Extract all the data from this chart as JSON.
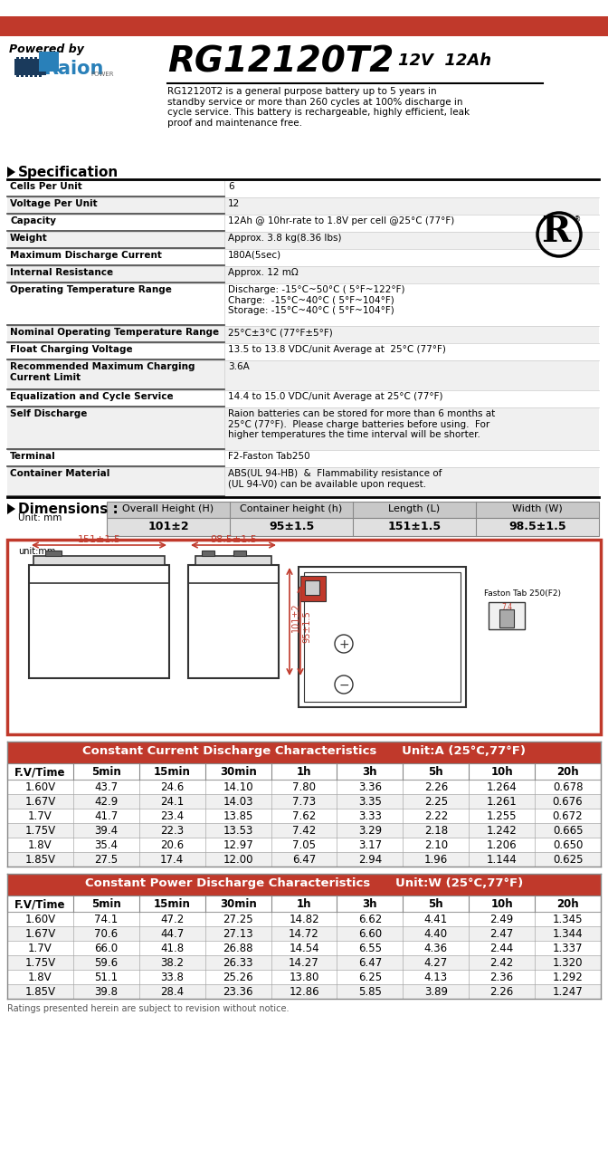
{
  "title_model": "RG12120T2",
  "title_voltage": "12V  12Ah",
  "powered_by": "Powered by",
  "description": "RG12120T2 is a general purpose battery up to 5 years in\nstandby service or more than 260 cycles at 100% discharge in\ncycle service. This battery is rechargeable, highly efficient, leak\nproof and maintenance free.",
  "top_bar_color": "#c0392b",
  "raion_blue": "#2980b9",
  "spec_rows": [
    [
      "Cells Per Unit",
      "6"
    ],
    [
      "Voltage Per Unit",
      "12"
    ],
    [
      "Capacity",
      "12Ah @ 10hr-rate to 1.8V per cell @25°C (77°F)"
    ],
    [
      "Weight",
      "Approx. 3.8 kg(8.36 lbs)"
    ],
    [
      "Maximum Discharge Current",
      "180A(5sec)"
    ],
    [
      "Internal Resistance",
      "Approx. 12 mΩ"
    ],
    [
      "Operating Temperature Range",
      "Discharge: -15°C~50°C ( 5°F~122°F)\nCharge:  -15°C~40°C ( 5°F~104°F)\nStorage: -15°C~40°C ( 5°F~104°F)"
    ],
    [
      "Nominal Operating Temperature Range",
      "25°C±3°C (77°F±5°F)"
    ],
    [
      "Float Charging Voltage",
      "13.5 to 13.8 VDC/unit Average at  25°C (77°F)"
    ],
    [
      "Recommended Maximum Charging\nCurrent Limit",
      "3.6A"
    ],
    [
      "Equalization and Cycle Service",
      "14.4 to 15.0 VDC/unit Average at 25°C (77°F)"
    ],
    [
      "Self Discharge",
      "Raion batteries can be stored for more than 6 months at\n25°C (77°F).  Please charge batteries before using.  For\nhigher temperatures the time interval will be shorter."
    ],
    [
      "Terminal",
      "F2-Faston Tab250"
    ],
    [
      "Container Material",
      "ABS(UL 94-HB)  &  Flammability resistance of\n(UL 94-V0) can be available upon request."
    ]
  ],
  "dim_headers": [
    "Overall Height (H)",
    "Container height (h)",
    "Length (L)",
    "Width (W)"
  ],
  "dim_values": [
    "101±2",
    "95±1.5",
    "151±1.5",
    "98.5±1.5"
  ],
  "dim_header_bg": "#c8c8c8",
  "dim_val_bg": "#e0e0e0",
  "cc_table_title": "Constant Current Discharge Characteristics",
  "cc_table_unit": "Unit:A (25°C,77°F)",
  "cp_table_title": "Constant Power Discharge Characteristics",
  "cp_table_unit": "Unit:W (25°C,77°F)",
  "table_header_bg": "#c0392b",
  "table_header_color": "#ffffff",
  "table_col_headers": [
    "F.V/Time",
    "5min",
    "15min",
    "30min",
    "1h",
    "3h",
    "5h",
    "10h",
    "20h"
  ],
  "cc_data": [
    [
      "1.60V",
      "43.7",
      "24.6",
      "14.10",
      "7.80",
      "3.36",
      "2.26",
      "1.264",
      "0.678"
    ],
    [
      "1.67V",
      "42.9",
      "24.1",
      "14.03",
      "7.73",
      "3.35",
      "2.25",
      "1.261",
      "0.676"
    ],
    [
      "1.7V",
      "41.7",
      "23.4",
      "13.85",
      "7.62",
      "3.33",
      "2.22",
      "1.255",
      "0.672"
    ],
    [
      "1.75V",
      "39.4",
      "22.3",
      "13.53",
      "7.42",
      "3.29",
      "2.18",
      "1.242",
      "0.665"
    ],
    [
      "1.8V",
      "35.4",
      "20.6",
      "12.97",
      "7.05",
      "3.17",
      "2.10",
      "1.206",
      "0.650"
    ],
    [
      "1.85V",
      "27.5",
      "17.4",
      "12.00",
      "6.47",
      "2.94",
      "1.96",
      "1.144",
      "0.625"
    ]
  ],
  "cp_data": [
    [
      "1.60V",
      "74.1",
      "47.2",
      "27.25",
      "14.82",
      "6.62",
      "4.41",
      "2.49",
      "1.345"
    ],
    [
      "1.67V",
      "70.6",
      "44.7",
      "27.13",
      "14.72",
      "6.60",
      "4.40",
      "2.47",
      "1.344"
    ],
    [
      "1.7V",
      "66.0",
      "41.8",
      "26.88",
      "14.54",
      "6.55",
      "4.36",
      "2.44",
      "1.337"
    ],
    [
      "1.75V",
      "59.6",
      "38.2",
      "26.33",
      "14.27",
      "6.47",
      "4.27",
      "2.42",
      "1.320"
    ],
    [
      "1.8V",
      "51.1",
      "33.8",
      "25.26",
      "13.80",
      "6.25",
      "4.13",
      "2.36",
      "1.292"
    ],
    [
      "1.85V",
      "39.8",
      "28.4",
      "23.36",
      "12.86",
      "5.85",
      "3.89",
      "2.26",
      "1.247"
    ]
  ],
  "footer_text": "Ratings presented herein are subject to revision without notice.",
  "red_color": "#c0392b",
  "diagram_border_color": "#c0392b",
  "row_alt_color": "#f0f0f0",
  "row_white": "#ffffff",
  "grid_line_color": "#aaaaaa",
  "table_border_color": "#888888"
}
